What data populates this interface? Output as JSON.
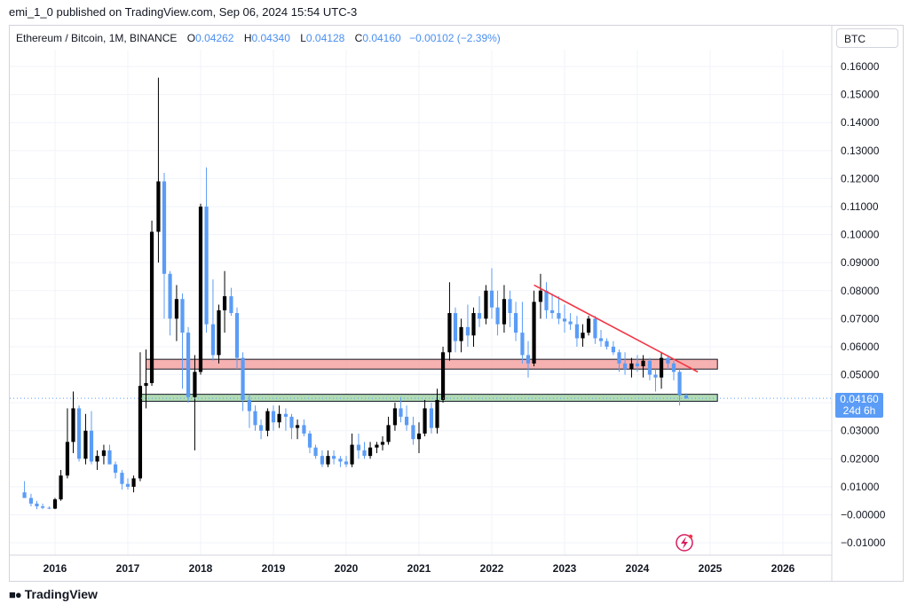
{
  "header": {
    "published": "emi_1_0 published on TradingView.com, Sep 06, 2024 15:54 UTC-3"
  },
  "legend": {
    "symbol": "Ethereum / Bitcoin, 1M, BINANCE",
    "o_label": "O",
    "o": "0.04262",
    "h_label": "H",
    "h": "0.04340",
    "l_label": "L",
    "l": "0.04128",
    "c_label": "C",
    "c": "0.04160",
    "change": "−0.00102 (−2.39%)"
  },
  "price_axis": {
    "unit": "BTC",
    "current_price": "0.04160",
    "countdown": "24d 6h"
  },
  "footer": {
    "brand": "TradingView"
  },
  "colors": {
    "up": "#000000",
    "down": "#5b9cf6",
    "resistance_zone": "#f4a3a3",
    "support_zone": "#a5d6a7",
    "trendline": "#f23645"
  },
  "chart_data": {
    "type": "candlestick",
    "title": "Ethereum / Bitcoin, 1M, BINANCE",
    "ylim": [
      -0.012,
      0.165
    ],
    "xlim": [
      2015.4,
      2026.7
    ],
    "yticks": [
      "0.16000",
      "0.15000",
      "0.14000",
      "0.13000",
      "0.12000",
      "0.11000",
      "0.10000",
      "0.09000",
      "0.08000",
      "0.07000",
      "0.06000",
      "0.05000",
      "0.04000",
      "0.03000",
      "0.02000",
      "0.01000",
      "−0.00000",
      "−0.01000"
    ],
    "ytick_values": [
      0.16,
      0.15,
      0.14,
      0.13,
      0.12,
      0.11,
      0.1,
      0.09,
      0.08,
      0.07,
      0.06,
      0.05,
      0.04,
      0.03,
      0.02,
      0.01,
      0.0,
      -0.01
    ],
    "xticks": [
      "2016",
      "2017",
      "2018",
      "2019",
      "2020",
      "2021",
      "2022",
      "2023",
      "2024",
      "2025",
      "2026"
    ],
    "xtick_values": [
      2016,
      2017,
      2018,
      2019,
      2020,
      2021,
      2022,
      2023,
      2024,
      2025,
      2026
    ],
    "grid": true,
    "candles": [
      [
        2015.58,
        0.008,
        0.012,
        0.006,
        0.006
      ],
      [
        2015.67,
        0.006,
        0.0075,
        0.003,
        0.004
      ],
      [
        2015.75,
        0.004,
        0.005,
        0.002,
        0.003
      ],
      [
        2015.83,
        0.003,
        0.004,
        0.002,
        0.0025
      ],
      [
        2015.92,
        0.0025,
        0.003,
        0.002,
        0.0022
      ],
      [
        2016.0,
        0.0022,
        0.006,
        0.002,
        0.0055
      ],
      [
        2016.08,
        0.0055,
        0.016,
        0.005,
        0.014
      ],
      [
        2016.17,
        0.014,
        0.038,
        0.013,
        0.026
      ],
      [
        2016.25,
        0.026,
        0.044,
        0.022,
        0.038
      ],
      [
        2016.33,
        0.038,
        0.039,
        0.019,
        0.02
      ],
      [
        2016.42,
        0.02,
        0.036,
        0.018,
        0.03
      ],
      [
        2016.5,
        0.03,
        0.037,
        0.018,
        0.019
      ],
      [
        2016.58,
        0.019,
        0.023,
        0.016,
        0.021
      ],
      [
        2016.67,
        0.021,
        0.025,
        0.018,
        0.023
      ],
      [
        2016.75,
        0.023,
        0.025,
        0.019,
        0.018
      ],
      [
        2016.83,
        0.018,
        0.019,
        0.013,
        0.015
      ],
      [
        2016.92,
        0.015,
        0.016,
        0.009,
        0.011
      ],
      [
        2017.0,
        0.011,
        0.013,
        0.009,
        0.01
      ],
      [
        2017.08,
        0.01,
        0.014,
        0.008,
        0.013
      ],
      [
        2017.17,
        0.013,
        0.058,
        0.012,
        0.046
      ],
      [
        2017.25,
        0.046,
        0.059,
        0.038,
        0.047
      ],
      [
        2017.33,
        0.047,
        0.105,
        0.046,
        0.101
      ],
      [
        2017.42,
        0.101,
        0.156,
        0.09,
        0.119
      ],
      [
        2017.5,
        0.119,
        0.122,
        0.07,
        0.086
      ],
      [
        2017.58,
        0.086,
        0.087,
        0.064,
        0.07
      ],
      [
        2017.67,
        0.07,
        0.082,
        0.062,
        0.077
      ],
      [
        2017.75,
        0.077,
        0.079,
        0.045,
        0.065
      ],
      [
        2017.83,
        0.065,
        0.067,
        0.04,
        0.042
      ],
      [
        2017.92,
        0.042,
        0.057,
        0.023,
        0.051
      ],
      [
        2018.0,
        0.051,
        0.111,
        0.05,
        0.11
      ],
      [
        2018.08,
        0.11,
        0.124,
        0.065,
        0.068
      ],
      [
        2018.17,
        0.068,
        0.084,
        0.055,
        0.057
      ],
      [
        2018.25,
        0.057,
        0.075,
        0.054,
        0.073
      ],
      [
        2018.33,
        0.073,
        0.087,
        0.065,
        0.078
      ],
      [
        2018.42,
        0.078,
        0.081,
        0.071,
        0.072
      ],
      [
        2018.5,
        0.072,
        0.074,
        0.052,
        0.056
      ],
      [
        2018.58,
        0.056,
        0.058,
        0.037,
        0.041
      ],
      [
        2018.67,
        0.041,
        0.043,
        0.031,
        0.037
      ],
      [
        2018.75,
        0.037,
        0.039,
        0.03,
        0.032
      ],
      [
        2018.83,
        0.032,
        0.034,
        0.027,
        0.03
      ],
      [
        2018.92,
        0.03,
        0.038,
        0.028,
        0.037
      ],
      [
        2019.0,
        0.037,
        0.039,
        0.03,
        0.033
      ],
      [
        2019.08,
        0.033,
        0.039,
        0.031,
        0.036
      ],
      [
        2019.17,
        0.036,
        0.038,
        0.03,
        0.035
      ],
      [
        2019.25,
        0.035,
        0.036,
        0.027,
        0.031
      ],
      [
        2019.33,
        0.031,
        0.034,
        0.027,
        0.032
      ],
      [
        2019.42,
        0.032,
        0.034,
        0.028,
        0.029
      ],
      [
        2019.5,
        0.029,
        0.03,
        0.022,
        0.024
      ],
      [
        2019.58,
        0.024,
        0.025,
        0.02,
        0.021
      ],
      [
        2019.67,
        0.021,
        0.023,
        0.017,
        0.018
      ],
      [
        2019.75,
        0.018,
        0.023,
        0.017,
        0.021
      ],
      [
        2019.83,
        0.021,
        0.023,
        0.018,
        0.02
      ],
      [
        2019.92,
        0.02,
        0.021,
        0.017,
        0.019
      ],
      [
        2020.0,
        0.019,
        0.021,
        0.017,
        0.018
      ],
      [
        2020.08,
        0.018,
        0.029,
        0.017,
        0.025
      ],
      [
        2020.17,
        0.025,
        0.029,
        0.02,
        0.023
      ],
      [
        2020.25,
        0.023,
        0.026,
        0.02,
        0.021
      ],
      [
        2020.33,
        0.021,
        0.026,
        0.02,
        0.024
      ],
      [
        2020.42,
        0.024,
        0.026,
        0.022,
        0.025
      ],
      [
        2020.5,
        0.025,
        0.028,
        0.023,
        0.026
      ],
      [
        2020.58,
        0.026,
        0.035,
        0.025,
        0.032
      ],
      [
        2020.67,
        0.032,
        0.04,
        0.03,
        0.038
      ],
      [
        2020.75,
        0.038,
        0.042,
        0.033,
        0.035
      ],
      [
        2020.83,
        0.035,
        0.039,
        0.03,
        0.032
      ],
      [
        2020.92,
        0.032,
        0.035,
        0.025,
        0.027
      ],
      [
        2021.0,
        0.027,
        0.033,
        0.022,
        0.029
      ],
      [
        2021.08,
        0.029,
        0.041,
        0.028,
        0.038
      ],
      [
        2021.17,
        0.038,
        0.04,
        0.029,
        0.031
      ],
      [
        2021.25,
        0.031,
        0.045,
        0.029,
        0.041
      ],
      [
        2021.33,
        0.041,
        0.06,
        0.04,
        0.058
      ],
      [
        2021.42,
        0.058,
        0.083,
        0.055,
        0.072
      ],
      [
        2021.5,
        0.072,
        0.074,
        0.058,
        0.062
      ],
      [
        2021.58,
        0.062,
        0.07,
        0.058,
        0.067
      ],
      [
        2021.67,
        0.067,
        0.075,
        0.06,
        0.064
      ],
      [
        2021.75,
        0.064,
        0.074,
        0.06,
        0.072
      ],
      [
        2021.83,
        0.072,
        0.078,
        0.067,
        0.07
      ],
      [
        2021.92,
        0.07,
        0.082,
        0.068,
        0.08
      ],
      [
        2022.0,
        0.08,
        0.088,
        0.07,
        0.074
      ],
      [
        2022.08,
        0.074,
        0.08,
        0.064,
        0.068
      ],
      [
        2022.17,
        0.068,
        0.082,
        0.065,
        0.077
      ],
      [
        2022.25,
        0.077,
        0.08,
        0.067,
        0.072
      ],
      [
        2022.33,
        0.072,
        0.076,
        0.062,
        0.065
      ],
      [
        2022.42,
        0.065,
        0.076,
        0.054,
        0.057
      ],
      [
        2022.5,
        0.057,
        0.062,
        0.049,
        0.054
      ],
      [
        2022.58,
        0.054,
        0.08,
        0.053,
        0.076
      ],
      [
        2022.67,
        0.076,
        0.086,
        0.07,
        0.08
      ],
      [
        2022.75,
        0.08,
        0.083,
        0.07,
        0.073
      ],
      [
        2022.83,
        0.073,
        0.079,
        0.07,
        0.072
      ],
      [
        2022.92,
        0.072,
        0.078,
        0.068,
        0.07
      ],
      [
        2023.0,
        0.07,
        0.075,
        0.065,
        0.069
      ],
      [
        2023.08,
        0.069,
        0.072,
        0.066,
        0.068
      ],
      [
        2023.17,
        0.068,
        0.071,
        0.06,
        0.063
      ],
      [
        2023.25,
        0.063,
        0.068,
        0.06,
        0.065
      ],
      [
        2023.33,
        0.065,
        0.071,
        0.064,
        0.07
      ],
      [
        2023.42,
        0.07,
        0.071,
        0.061,
        0.063
      ],
      [
        2023.5,
        0.063,
        0.066,
        0.06,
        0.062
      ],
      [
        2023.58,
        0.062,
        0.063,
        0.059,
        0.06
      ],
      [
        2023.67,
        0.06,
        0.062,
        0.057,
        0.058
      ],
      [
        2023.75,
        0.058,
        0.059,
        0.051,
        0.054
      ],
      [
        2023.83,
        0.054,
        0.058,
        0.05,
        0.052
      ],
      [
        2023.92,
        0.052,
        0.056,
        0.049,
        0.054
      ],
      [
        2024.0,
        0.054,
        0.057,
        0.051,
        0.053
      ],
      [
        2024.08,
        0.053,
        0.057,
        0.049,
        0.055
      ],
      [
        2024.17,
        0.055,
        0.056,
        0.048,
        0.05
      ],
      [
        2024.25,
        0.05,
        0.052,
        0.044,
        0.049
      ],
      [
        2024.33,
        0.049,
        0.058,
        0.045,
        0.056
      ],
      [
        2024.42,
        0.056,
        0.057,
        0.052,
        0.054
      ],
      [
        2024.5,
        0.054,
        0.055,
        0.048,
        0.051
      ],
      [
        2024.58,
        0.051,
        0.052,
        0.039,
        0.0426
      ],
      [
        2024.67,
        0.0426,
        0.0434,
        0.0413,
        0.0416
      ]
    ],
    "zones": [
      {
        "name": "resistance",
        "from": 0.052,
        "to": 0.0555,
        "x_start": 2017.25,
        "x_end": 2025.1
      },
      {
        "name": "support",
        "from": 0.0405,
        "to": 0.043,
        "x_start": 2017.17,
        "x_end": 2025.1
      }
    ],
    "trendline": {
      "x1": 2022.58,
      "y1": 0.082,
      "x2": 2024.83,
      "y2": 0.051
    },
    "current_price": 0.0416
  }
}
